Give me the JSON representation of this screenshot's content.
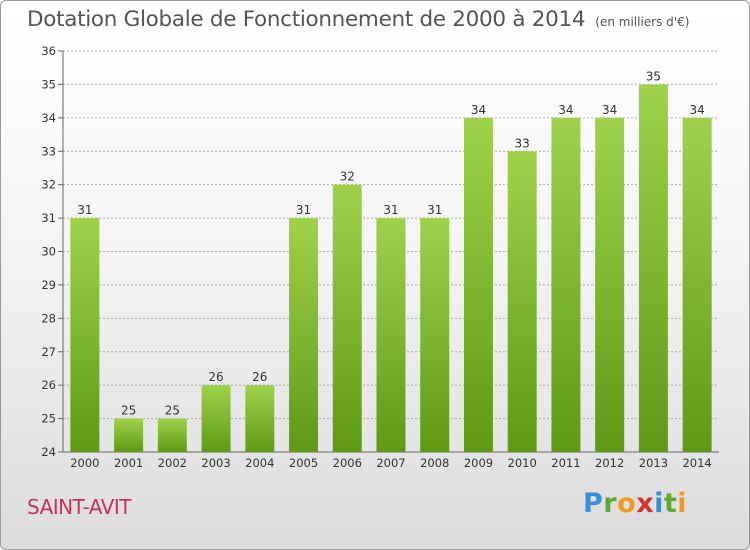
{
  "header": {
    "title": "Dotation Globale de Fonctionnement de 2000 à 2014",
    "unit": "(en milliers d'€)"
  },
  "footer": {
    "commune": "SAINT-AVIT",
    "logo_letters": [
      "P",
      "r",
      "o",
      "x",
      "i",
      "t",
      "i"
    ]
  },
  "colors": {
    "bar_light": "#9fd24a",
    "bar_dark": "#5e9a14",
    "grid": "#aaaaaa",
    "title": "#555555",
    "commune": "#c8325a"
  },
  "chart_data": {
    "type": "bar",
    "title": "Dotation Globale de Fonctionnement de 2000 à 2014",
    "subtitle": "(en milliers d'€)",
    "xlabel": "",
    "ylabel": "",
    "categories": [
      "2000",
      "2001",
      "2002",
      "2003",
      "2004",
      "2005",
      "2006",
      "2007",
      "2008",
      "2009",
      "2010",
      "2011",
      "2012",
      "2013",
      "2014"
    ],
    "values": [
      31,
      25,
      25,
      26,
      26,
      31,
      32,
      31,
      31,
      34,
      33,
      34,
      34,
      35,
      34
    ],
    "ylim": [
      24,
      36
    ],
    "yticks": [
      24,
      25,
      26,
      27,
      28,
      29,
      30,
      31,
      32,
      33,
      34,
      35,
      36
    ],
    "grid": true,
    "data_labels": true
  }
}
